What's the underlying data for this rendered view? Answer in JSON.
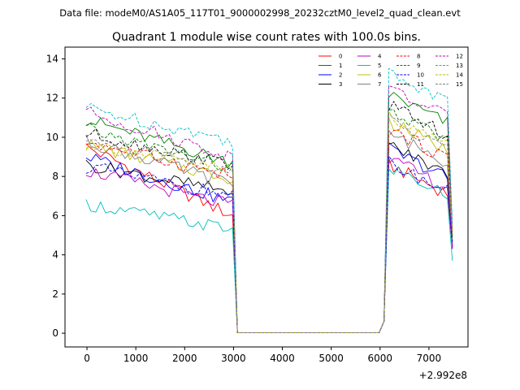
{
  "chart_data": {
    "type": "line",
    "suptitle": "Data file: modeM0/AS1A05_117T01_9000002998_20232cztM0_level2_quad_clean.evt",
    "title": "Quadrant 1 module wise count rates with 100.0s bins.",
    "xlabel": "",
    "ylabel": "",
    "x_offset_label": "+2.992e8",
    "xlim": [
      -450,
      7800
    ],
    "ylim": [
      -0.7,
      14.6
    ],
    "x_ticks": [
      0,
      1000,
      2000,
      3000,
      4000,
      5000,
      6000,
      7000
    ],
    "y_ticks": [
      0,
      2,
      4,
      6,
      8,
      10,
      12,
      14
    ],
    "grid": false,
    "legend_position": "top-right",
    "legend_columns": 4,
    "x_range": {
      "start": -20,
      "step": 100,
      "count": 76
    },
    "gap": {
      "drop_start": 2980,
      "zero_start": 3130,
      "zero_end": 6020,
      "rise_end": 6180
    },
    "series": [
      {
        "name": "0",
        "color": "#ff0000",
        "dash": "solid",
        "level_start": 9.5,
        "level_end": 6.0,
        "level_post": 8.6,
        "end_value": 4.4
      },
      {
        "name": "1",
        "color": "#008000",
        "dash": "solid",
        "level_start": 10.9,
        "level_end": 8.7,
        "level_post": 12.2,
        "end_value": 4.7
      },
      {
        "name": "2",
        "color": "#0000ff",
        "dash": "solid",
        "level_start": 9.0,
        "level_end": 6.7,
        "level_post": 9.4,
        "end_value": 4.3
      },
      {
        "name": "3",
        "color": "#000000",
        "dash": "solid",
        "level_start": 8.6,
        "level_end": 7.2,
        "level_post": 9.6,
        "end_value": 4.5
      },
      {
        "name": "4",
        "color": "#bf00bf",
        "dash": "solid",
        "level_start": 8.3,
        "level_end": 6.5,
        "level_post": 8.9,
        "end_value": 4.4
      },
      {
        "name": "5",
        "color": "#00bfbf",
        "dash": "solid",
        "level_start": 6.6,
        "level_end": 5.3,
        "level_post": 8.5,
        "end_value": 3.7
      },
      {
        "name": "6",
        "color": "#bfbf00",
        "dash": "solid",
        "level_start": 9.6,
        "level_end": 7.9,
        "level_post": 10.8,
        "end_value": 4.8
      },
      {
        "name": "7",
        "color": "#808080",
        "dash": "solid",
        "level_start": 9.8,
        "level_end": 7.6,
        "level_post": 10.2,
        "end_value": 4.6
      },
      {
        "name": "8",
        "color": "#ff0000",
        "dash": "dashed",
        "level_start": 9.8,
        "level_end": 8.0,
        "level_post": 10.4,
        "end_value": 4.9
      },
      {
        "name": "9",
        "color": "#008000",
        "dash": "dashed",
        "level_start": 10.4,
        "level_end": 8.4,
        "level_post": 11.3,
        "end_value": 5.0
      },
      {
        "name": "10",
        "color": "#0000ff",
        "dash": "dashed",
        "level_start": 8.5,
        "level_end": 7.0,
        "level_post": 8.7,
        "end_value": 4.6
      },
      {
        "name": "11",
        "color": "#000000",
        "dash": "dashed",
        "level_start": 10.2,
        "level_end": 8.6,
        "level_post": 11.6,
        "end_value": 5.1
      },
      {
        "name": "12",
        "color": "#bf00bf",
        "dash": "dashed",
        "level_start": 11.3,
        "level_end": 9.0,
        "level_post": 12.5,
        "end_value": 5.3
      },
      {
        "name": "13",
        "color": "#00bfbf",
        "dash": "dashed",
        "level_start": 11.5,
        "level_end": 9.8,
        "level_post": 13.3,
        "end_value": 5.5
      },
      {
        "name": "14",
        "color": "#bfbf00",
        "dash": "dashed",
        "level_start": 9.7,
        "level_end": 8.3,
        "level_post": 11.1,
        "end_value": 5.2
      },
      {
        "name": "15",
        "color": "#808080",
        "dash": "dashed",
        "level_start": 9.9,
        "level_end": 8.2,
        "level_post": 10.9,
        "end_value": 5.0
      }
    ]
  }
}
